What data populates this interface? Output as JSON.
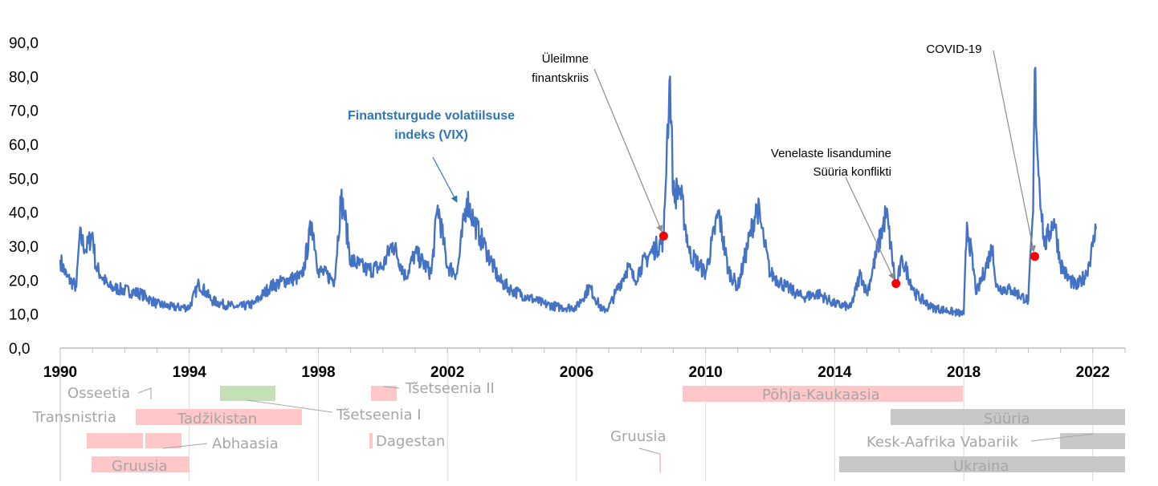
{
  "chart_data": {
    "type": "line",
    "series_label": [
      "Finantsturgude volatiilsuse",
      "indeks (VIX)"
    ],
    "yticks": [
      "0,0",
      "10,0",
      "20,0",
      "30,0",
      "40,0",
      "50,0",
      "60,0",
      "70,0",
      "80,0",
      "90,0"
    ],
    "ylim": [
      0,
      90
    ],
    "xlim": [
      1990,
      2023
    ],
    "xticks": [
      {
        "year": 1990,
        "label": "1990"
      },
      {
        "year": 1994,
        "label": "1994"
      },
      {
        "year": 1998,
        "label": "1998"
      },
      {
        "year": 2002,
        "label": "2002"
      },
      {
        "year": 2006,
        "label": "2006"
      },
      {
        "year": 2010,
        "label": "2010"
      },
      {
        "year": 2014,
        "label": "2014"
      },
      {
        "year": 2018,
        "label": "2018"
      },
      {
        "year": 2022,
        "label": "2022"
      }
    ],
    "grid": "vertical",
    "line_color": "#4472c4",
    "marker_color": "#ff0000",
    "vix": [
      [
        1990.0,
        26
      ],
      [
        1990.2,
        21
      ],
      [
        1990.5,
        18
      ],
      [
        1990.6,
        33
      ],
      [
        1990.8,
        29
      ],
      [
        1991.0,
        34
      ],
      [
        1991.1,
        24
      ],
      [
        1991.5,
        18
      ],
      [
        1992.0,
        17
      ],
      [
        1992.5,
        16
      ],
      [
        1993.0,
        13
      ],
      [
        1993.5,
        12
      ],
      [
        1994.0,
        12
      ],
      [
        1994.3,
        19
      ],
      [
        1994.7,
        14
      ],
      [
        1995.0,
        13
      ],
      [
        1995.5,
        12
      ],
      [
        1996.0,
        13
      ],
      [
        1996.5,
        18
      ],
      [
        1997.0,
        20
      ],
      [
        1997.5,
        21
      ],
      [
        1997.8,
        37
      ],
      [
        1998.0,
        23
      ],
      [
        1998.5,
        20
      ],
      [
        1998.7,
        44
      ],
      [
        1998.8,
        40
      ],
      [
        1999.0,
        26
      ],
      [
        1999.5,
        23
      ],
      [
        2000.0,
        24
      ],
      [
        2000.3,
        31
      ],
      [
        2000.7,
        21
      ],
      [
        2001.0,
        28
      ],
      [
        2001.5,
        22
      ],
      [
        2001.7,
        42
      ],
      [
        2002.0,
        24
      ],
      [
        2002.3,
        22
      ],
      [
        2002.6,
        44
      ],
      [
        2002.8,
        38
      ],
      [
        2003.0,
        33
      ],
      [
        2003.2,
        29
      ],
      [
        2003.6,
        20
      ],
      [
        2004.0,
        17
      ],
      [
        2004.5,
        15
      ],
      [
        2005.0,
        13
      ],
      [
        2005.5,
        12
      ],
      [
        2006.0,
        12
      ],
      [
        2006.4,
        18
      ],
      [
        2006.8,
        11
      ],
      [
        2007.0,
        12
      ],
      [
        2007.2,
        16
      ],
      [
        2007.6,
        24
      ],
      [
        2007.8,
        20
      ],
      [
        2008.0,
        24
      ],
      [
        2008.3,
        28
      ],
      [
        2008.7,
        32
      ],
      [
        2008.8,
        60
      ],
      [
        2008.9,
        80
      ],
      [
        2009.0,
        45
      ],
      [
        2009.2,
        47
      ],
      [
        2009.5,
        28
      ],
      [
        2010.0,
        22
      ],
      [
        2010.4,
        40
      ],
      [
        2010.7,
        23
      ],
      [
        2011.0,
        18
      ],
      [
        2011.6,
        42
      ],
      [
        2011.8,
        32
      ],
      [
        2012.0,
        22
      ],
      [
        2012.5,
        18
      ],
      [
        2013.0,
        15
      ],
      [
        2013.5,
        16
      ],
      [
        2014.0,
        13
      ],
      [
        2014.5,
        12
      ],
      [
        2014.8,
        22
      ],
      [
        2015.0,
        16
      ],
      [
        2015.6,
        40
      ],
      [
        2015.9,
        18
      ],
      [
        2016.1,
        26
      ],
      [
        2016.5,
        16
      ],
      [
        2017.0,
        12
      ],
      [
        2017.5,
        11
      ],
      [
        2018.0,
        10
      ],
      [
        2018.1,
        37
      ],
      [
        2018.4,
        16
      ],
      [
        2018.9,
        30
      ],
      [
        2019.0,
        18
      ],
      [
        2019.5,
        17
      ],
      [
        2020.0,
        14
      ],
      [
        2020.15,
        40
      ],
      [
        2020.2,
        82
      ],
      [
        2020.3,
        55
      ],
      [
        2020.5,
        30
      ],
      [
        2020.8,
        38
      ],
      [
        2021.0,
        25
      ],
      [
        2021.2,
        21
      ],
      [
        2021.5,
        18
      ],
      [
        2021.8,
        22
      ],
      [
        2022.0,
        30
      ],
      [
        2022.1,
        35
      ]
    ],
    "events": [
      {
        "year": 2008.7,
        "value": 33,
        "label": [
          "Üleilmne",
          "finantskriis"
        ]
      },
      {
        "year": 2015.9,
        "value": 19,
        "label": [
          "Venelaste lisandumine",
          "Süüria konflikti"
        ]
      },
      {
        "year": 2020.2,
        "value": 27,
        "label": [
          "COVID-19"
        ]
      }
    ],
    "conflicts": [
      {
        "name": "Osseetia",
        "start": 1990.2,
        "end": 1991.2,
        "color": "#ffc7c7"
      },
      {
        "name": "Transnistria",
        "start": 1992.2,
        "end": 1992.6,
        "color": "#ffc7c7"
      },
      {
        "name": "Tadžikistan",
        "start": 1992.4,
        "end": 1997.5,
        "color": "#ffc7c7"
      },
      {
        "name": "Tšetseenia I",
        "start": 1995.0,
        "end": 1996.7,
        "color": "#c5e0b4"
      },
      {
        "name": "Abhaasia",
        "start": 1992.4,
        "end": 1993.8,
        "color": "#ffc7c7"
      },
      {
        "name": "Gruusia",
        "start": 1991.0,
        "end": 1994.0,
        "color": "#ffc7c7"
      },
      {
        "name": "Tšetseenia II",
        "start": 1999.7,
        "end": 2000.5,
        "color": "#ffc7c7"
      },
      {
        "name": "Dagestan",
        "start": 1999.7,
        "end": 1999.8,
        "color": "#ffc7c7"
      },
      {
        "name": "Gruusia",
        "start": 2008.6,
        "end": 2008.7,
        "color": "#ffc7c7"
      },
      {
        "name": "Põhja-Kaukaasia",
        "start": 2009.3,
        "end": 2018.0,
        "color": "#ffc7c7"
      },
      {
        "name": "Süüria",
        "start": 2015.7,
        "end": 2023.0,
        "color": "#c8c8c8"
      },
      {
        "name": "Kesk-Aafrika Vabariik",
        "start": 2021.0,
        "end": 2023.0,
        "color": "#c8c8c8"
      },
      {
        "name": "Ukraina",
        "start": 2014.2,
        "end": 2023.0,
        "color": "#c8c8c8"
      }
    ]
  }
}
